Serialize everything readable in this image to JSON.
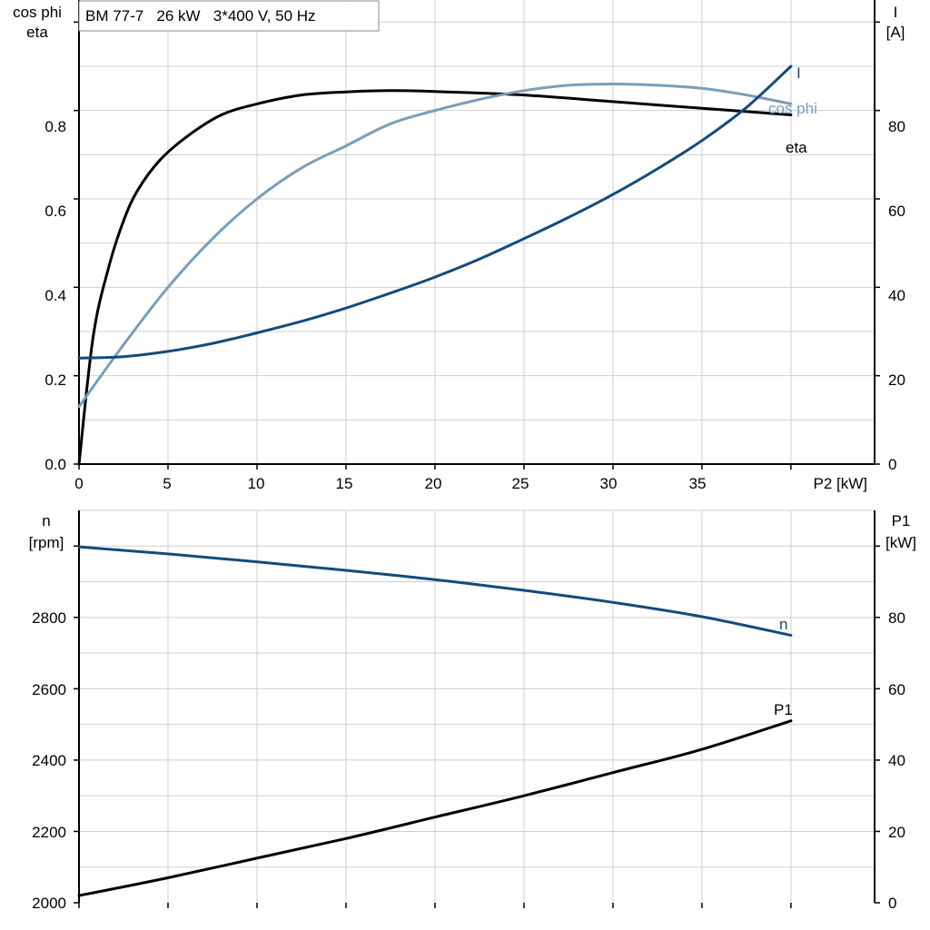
{
  "chart_data": [
    {
      "type": "line",
      "title": "BM 77-7   26 kW   3*400 V, 50 Hz",
      "xlabel": "P2 [kW]",
      "xlim": [
        0,
        44.7
      ],
      "x_ticks": [
        "0",
        "5",
        "10",
        "15",
        "20",
        "25",
        "30",
        "35"
      ],
      "left_axis": {
        "label_line1": "cos phi",
        "label_line2": "eta",
        "ylim": [
          0,
          1.05
        ],
        "ticks": [
          "0.0",
          "0.2",
          "0.4",
          "0.6",
          "0.8"
        ]
      },
      "right_axis": {
        "label_line1": "I",
        "label_line2": "[A]",
        "ylim": [
          0,
          105
        ],
        "ticks": [
          "0",
          "20",
          "40",
          "60",
          "80"
        ]
      },
      "grid": true,
      "series": [
        {
          "name": "eta",
          "axis": "left",
          "color": "#000000",
          "x": [
            0,
            0.8,
            1.7,
            2.5,
            3.3,
            4.6,
            6.2,
            8,
            10,
            12.5,
            15,
            17.5,
            20,
            25,
            30,
            35,
            40
          ],
          "y": [
            0,
            0.29,
            0.45,
            0.55,
            0.62,
            0.69,
            0.745,
            0.79,
            0.815,
            0.835,
            0.842,
            0.845,
            0.843,
            0.835,
            0.82,
            0.805,
            0.79
          ]
        },
        {
          "name": "cos phi",
          "axis": "left",
          "color": "#7a9dbb",
          "x": [
            0,
            2.5,
            5,
            7.5,
            10,
            12.5,
            15,
            17.5,
            20,
            22.5,
            25,
            27.5,
            30,
            32.5,
            35,
            37.5,
            40
          ],
          "y": [
            0.13,
            0.27,
            0.4,
            0.51,
            0.6,
            0.67,
            0.72,
            0.77,
            0.8,
            0.825,
            0.845,
            0.857,
            0.86,
            0.857,
            0.85,
            0.835,
            0.815
          ]
        },
        {
          "name": "I",
          "axis": "right",
          "color": "#134b7d",
          "x": [
            0,
            2.5,
            5,
            7.5,
            10,
            12.5,
            15,
            17.5,
            20,
            22.5,
            25,
            27.5,
            30,
            32.5,
            35,
            37.5,
            40
          ],
          "y": [
            24,
            24.3,
            25.5,
            27.3,
            29.7,
            32.3,
            35.3,
            38.7,
            42.3,
            46.4,
            51,
            55.8,
            61,
            66.8,
            73.2,
            80.7,
            90
          ]
        }
      ]
    },
    {
      "type": "line",
      "xlim": [
        0,
        44.7
      ],
      "left_axis": {
        "label_line1": "n",
        "label_line2": "[rpm]",
        "ylim": [
          2000,
          3100
        ],
        "ticks": [
          "2000",
          "2200",
          "2400",
          "2600",
          "2800"
        ]
      },
      "right_axis": {
        "label_line1": "P1",
        "label_line2": "[kW]",
        "ylim": [
          0,
          110
        ],
        "ticks": [
          "0",
          "20",
          "40",
          "60",
          "80"
        ]
      },
      "grid": true,
      "series": [
        {
          "name": "n",
          "axis": "left",
          "color": "#134b7d",
          "x": [
            0,
            5,
            10,
            15,
            20,
            25,
            30,
            35,
            40
          ],
          "y": [
            2998,
            2978,
            2956,
            2932,
            2906,
            2876,
            2842,
            2802,
            2750
          ]
        },
        {
          "name": "P1",
          "axis": "right",
          "color": "#000000",
          "x": [
            0,
            5,
            10,
            15,
            20,
            25,
            30,
            35,
            40
          ],
          "y": [
            2,
            7,
            12.5,
            18,
            24,
            30,
            36.5,
            43,
            51
          ]
        }
      ]
    }
  ]
}
